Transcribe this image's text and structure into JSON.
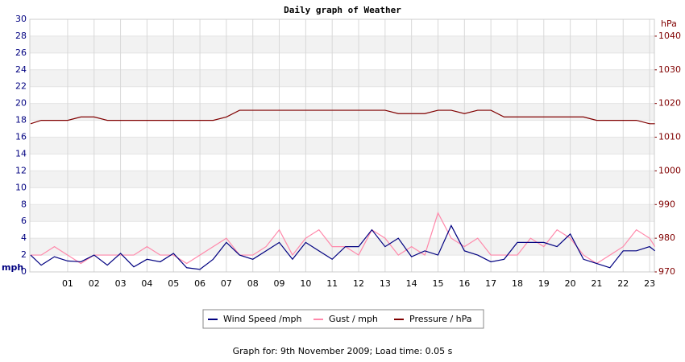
{
  "chart_data": {
    "type": "line",
    "title": "Daily graph of Weather",
    "y_label": "mph",
    "y2_label": "hPa",
    "x": [
      -0.4,
      0,
      0.5,
      1,
      1.5,
      2,
      2.5,
      3,
      3.5,
      4,
      4.5,
      5,
      5.5,
      6,
      6.5,
      7,
      7.5,
      8,
      8.5,
      9,
      9.5,
      10,
      10.5,
      11,
      11.5,
      12,
      12.5,
      13,
      13.5,
      14,
      14.5,
      15,
      15.5,
      16,
      16.5,
      17,
      17.5,
      18,
      18.5,
      19,
      19.5,
      20,
      20.5,
      21,
      21.5,
      22,
      22.5,
      23,
      23.2
    ],
    "series": [
      {
        "name": "Wind Speed /mph",
        "color": "#000080",
        "values": [
          2.0,
          0.8,
          1.8,
          1.3,
          1.2,
          2.0,
          0.8,
          2.2,
          0.6,
          1.5,
          1.2,
          2.2,
          0.5,
          0.3,
          1.5,
          3.5,
          2.0,
          1.5,
          2.5,
          3.5,
          1.5,
          3.5,
          2.5,
          1.5,
          3.0,
          3.0,
          5.0,
          3.0,
          4.0,
          1.8,
          2.5,
          2.0,
          5.5,
          2.5,
          2.0,
          1.2,
          1.5,
          3.5,
          3.5,
          3.5,
          3.0,
          4.5,
          1.5,
          1.0,
          0.5,
          2.5,
          2.5,
          3.0,
          2.5
        ]
      },
      {
        "name": "Gust / mph",
        "color": "#ff88aa",
        "values": [
          2,
          2,
          3,
          2,
          1,
          2,
          2,
          2,
          2,
          3,
          2,
          2,
          1,
          2,
          3,
          4,
          2,
          2,
          3,
          5,
          2,
          4,
          5,
          3,
          3,
          2,
          5,
          4,
          2,
          3,
          2,
          7,
          4,
          3,
          4,
          2,
          2,
          2,
          4,
          3,
          5,
          4,
          2,
          1,
          2,
          3,
          5,
          4,
          3
        ]
      },
      {
        "name": "Pressure / hPa",
        "color": "#800000",
        "axis": "y2",
        "values": [
          1014,
          1015,
          1015,
          1015,
          1016,
          1016,
          1015,
          1015,
          1015,
          1015,
          1015,
          1015,
          1015,
          1015,
          1015,
          1016,
          1018,
          1018,
          1018,
          1018,
          1018,
          1018,
          1018,
          1018,
          1018,
          1018,
          1018,
          1018,
          1017,
          1017,
          1017,
          1018,
          1018,
          1017,
          1018,
          1018,
          1016,
          1016,
          1016,
          1016,
          1016,
          1016,
          1016,
          1015,
          1015,
          1015,
          1015,
          1014,
          1014
        ]
      }
    ],
    "xlim": [
      -0.43,
      23.18
    ],
    "xticks": [
      {
        "value": 1,
        "label": "01"
      },
      {
        "value": 2,
        "label": "02"
      },
      {
        "value": 3,
        "label": "03"
      },
      {
        "value": 4,
        "label": "04"
      },
      {
        "value": 5,
        "label": "05"
      },
      {
        "value": 6,
        "label": "06"
      },
      {
        "value": 7,
        "label": "07"
      },
      {
        "value": 8,
        "label": "08"
      },
      {
        "value": 9,
        "label": "09"
      },
      10,
      11,
      12,
      13,
      14,
      15,
      16,
      17,
      18,
      19,
      20,
      21,
      22,
      23
    ],
    "ylim": [
      0,
      30
    ],
    "yticks": [
      0,
      2,
      4,
      6,
      8,
      10,
      12,
      14,
      16,
      18,
      20,
      22,
      24,
      26,
      28,
      30
    ],
    "y2lim": [
      970,
      1045
    ],
    "y2ticks": [
      970,
      980,
      990,
      1000,
      1010,
      1020,
      1030,
      1040
    ],
    "grid": true,
    "footer": "Graph for: 9th November 2009; Load time: 0.05 s"
  }
}
